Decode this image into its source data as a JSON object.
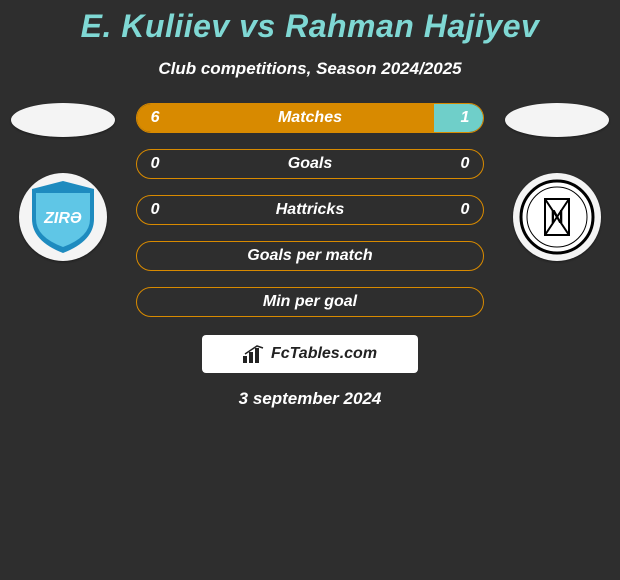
{
  "title_color": "#7fd8d4",
  "background_color": "#2e2e2e",
  "title": "E. Kuliiev vs Rahman Hajiyev",
  "subtitle": "Club competitions, Season 2024/2025",
  "date": "3 september 2024",
  "brand": "FcTables.com",
  "left_badge": {
    "bg": "#f4f4f4",
    "shield": "#1e8bbf",
    "accent": "#5fc6e6",
    "text": "ZIRƏ"
  },
  "right_badge": {
    "bg": "#f4f4f4",
    "ring": "#000000"
  },
  "bars": [
    {
      "label": "Matches",
      "left": "6",
      "right": "1",
      "left_pct": 85.7,
      "right_pct": 14.3,
      "left_color": "#d88a00",
      "right_color": "#6fcfc9",
      "border": "#d88a00",
      "show_vals": true
    },
    {
      "label": "Goals",
      "left": "0",
      "right": "0",
      "left_pct": 0,
      "right_pct": 0,
      "left_color": "#d88a00",
      "right_color": "#6fcfc9",
      "border": "#d88a00",
      "show_vals": true
    },
    {
      "label": "Hattricks",
      "left": "0",
      "right": "0",
      "left_pct": 0,
      "right_pct": 0,
      "left_color": "#d88a00",
      "right_color": "#6fcfc9",
      "border": "#d88a00",
      "show_vals": true
    },
    {
      "label": "Goals per match",
      "left": "",
      "right": "",
      "left_pct": 0,
      "right_pct": 0,
      "left_color": "#d88a00",
      "right_color": "#6fcfc9",
      "border": "#d88a00",
      "show_vals": false
    },
    {
      "label": "Min per goal",
      "left": "",
      "right": "",
      "left_pct": 0,
      "right_pct": 0,
      "left_color": "#d88a00",
      "right_color": "#6fcfc9",
      "border": "#d88a00",
      "show_vals": false
    }
  ]
}
